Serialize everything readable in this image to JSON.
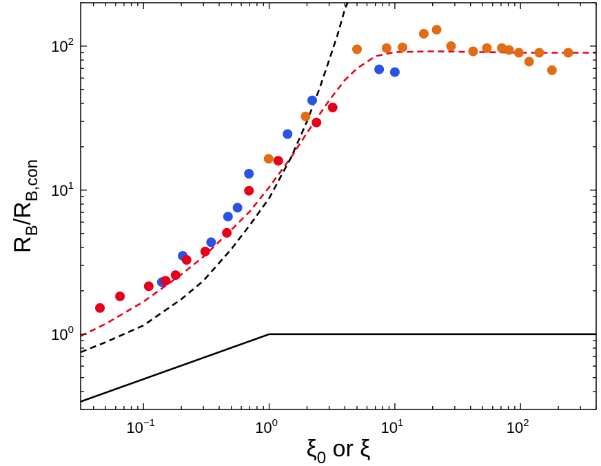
{
  "chart_data": {
    "type": "scatter",
    "xscale": "log",
    "yscale": "log",
    "xlim": [
      0.0316,
      400
    ],
    "ylim": [
      0.3,
      200
    ],
    "xlabel": {
      "main": "ξ",
      "sub": "0",
      "tail": " or ξ"
    },
    "ylabel": {
      "r1": "R",
      "s1": "B",
      "slash": "/R",
      "s2": "B,con"
    },
    "xticks": [
      {
        "value": 0.1,
        "base": "10",
        "exp": "−1"
      },
      {
        "value": 1,
        "base": "10",
        "exp": "0"
      },
      {
        "value": 10,
        "base": "10",
        "exp": "1"
      },
      {
        "value": 100,
        "base": "10",
        "exp": "2"
      }
    ],
    "yticks": [
      {
        "value": 1,
        "base": "10",
        "exp": "0"
      },
      {
        "value": 10,
        "base": "10",
        "exp": "1"
      },
      {
        "value": 100,
        "base": "10",
        "exp": "2"
      }
    ],
    "series": [
      {
        "name": "blue points",
        "kind": "points",
        "color": "#2a52e6",
        "points": [
          [
            0.14,
            2.3
          ],
          [
            0.205,
            3.5
          ],
          [
            0.345,
            4.35
          ],
          [
            0.47,
            6.55
          ],
          [
            0.56,
            7.55
          ],
          [
            0.69,
            13
          ],
          [
            1.4,
            24.5
          ],
          [
            2.2,
            42
          ],
          [
            7.5,
            69
          ],
          [
            10,
            66
          ]
        ]
      },
      {
        "name": "red points",
        "kind": "points",
        "color": "#e8001b",
        "points": [
          [
            0.045,
            1.52
          ],
          [
            0.065,
            1.83
          ],
          [
            0.11,
            2.15
          ],
          [
            0.15,
            2.35
          ],
          [
            0.18,
            2.57
          ],
          [
            0.22,
            3.28
          ],
          [
            0.31,
            3.75
          ],
          [
            0.46,
            5.05
          ],
          [
            0.69,
            9.9
          ],
          [
            1.18,
            16
          ],
          [
            2.38,
            29.5
          ],
          [
            3.2,
            37.5
          ]
        ]
      },
      {
        "name": "orange points",
        "kind": "points",
        "color": "#e26c14",
        "points": [
          [
            0.99,
            16.5
          ],
          [
            1.95,
            32.5
          ],
          [
            5.0,
            95
          ],
          [
            8.6,
            97
          ],
          [
            11.5,
            98
          ],
          [
            17,
            122
          ],
          [
            21.5,
            130
          ],
          [
            28,
            100
          ],
          [
            42,
            92
          ],
          [
            54,
            97
          ],
          [
            71,
            97
          ],
          [
            81,
            94
          ],
          [
            97,
            90
          ],
          [
            117,
            78
          ],
          [
            141,
            90
          ],
          [
            178,
            68
          ],
          [
            240,
            90
          ]
        ]
      },
      {
        "name": "red dashed model",
        "kind": "line",
        "color": "#e8001b",
        "dash": true,
        "points": [
          [
            0.0316,
            0.97
          ],
          [
            0.05,
            1.18
          ],
          [
            0.1,
            1.68
          ],
          [
            0.2,
            2.6
          ],
          [
            0.3,
            3.45
          ],
          [
            0.5,
            5.3
          ],
          [
            0.7,
            7.1
          ],
          [
            1,
            10.5
          ],
          [
            1.5,
            17
          ],
          [
            2,
            25
          ],
          [
            3,
            42
          ],
          [
            4,
            58
          ],
          [
            5,
            70
          ],
          [
            7,
            85
          ],
          [
            10,
            91
          ],
          [
            20,
            92
          ],
          [
            50,
            91
          ],
          [
            100,
            90
          ],
          [
            400,
            90
          ]
        ]
      },
      {
        "name": "black dashed model",
        "kind": "line",
        "color": "#000000",
        "dash": true,
        "points": [
          [
            0.0316,
            0.75
          ],
          [
            0.05,
            0.88
          ],
          [
            0.1,
            1.15
          ],
          [
            0.2,
            1.75
          ],
          [
            0.3,
            2.35
          ],
          [
            0.5,
            3.9
          ],
          [
            0.7,
            5.7
          ],
          [
            1,
            8.8
          ],
          [
            1.5,
            17
          ],
          [
            2,
            30
          ],
          [
            2.5,
            50
          ],
          [
            3,
            80
          ],
          [
            3.5,
            120
          ],
          [
            4,
            180
          ],
          [
            4.3,
            210
          ]
        ]
      },
      {
        "name": "black solid reference",
        "kind": "line",
        "color": "#000000",
        "dash": false,
        "points": [
          [
            0.0316,
            0.34
          ],
          [
            1,
            1
          ],
          [
            400,
            1
          ]
        ]
      }
    ]
  }
}
